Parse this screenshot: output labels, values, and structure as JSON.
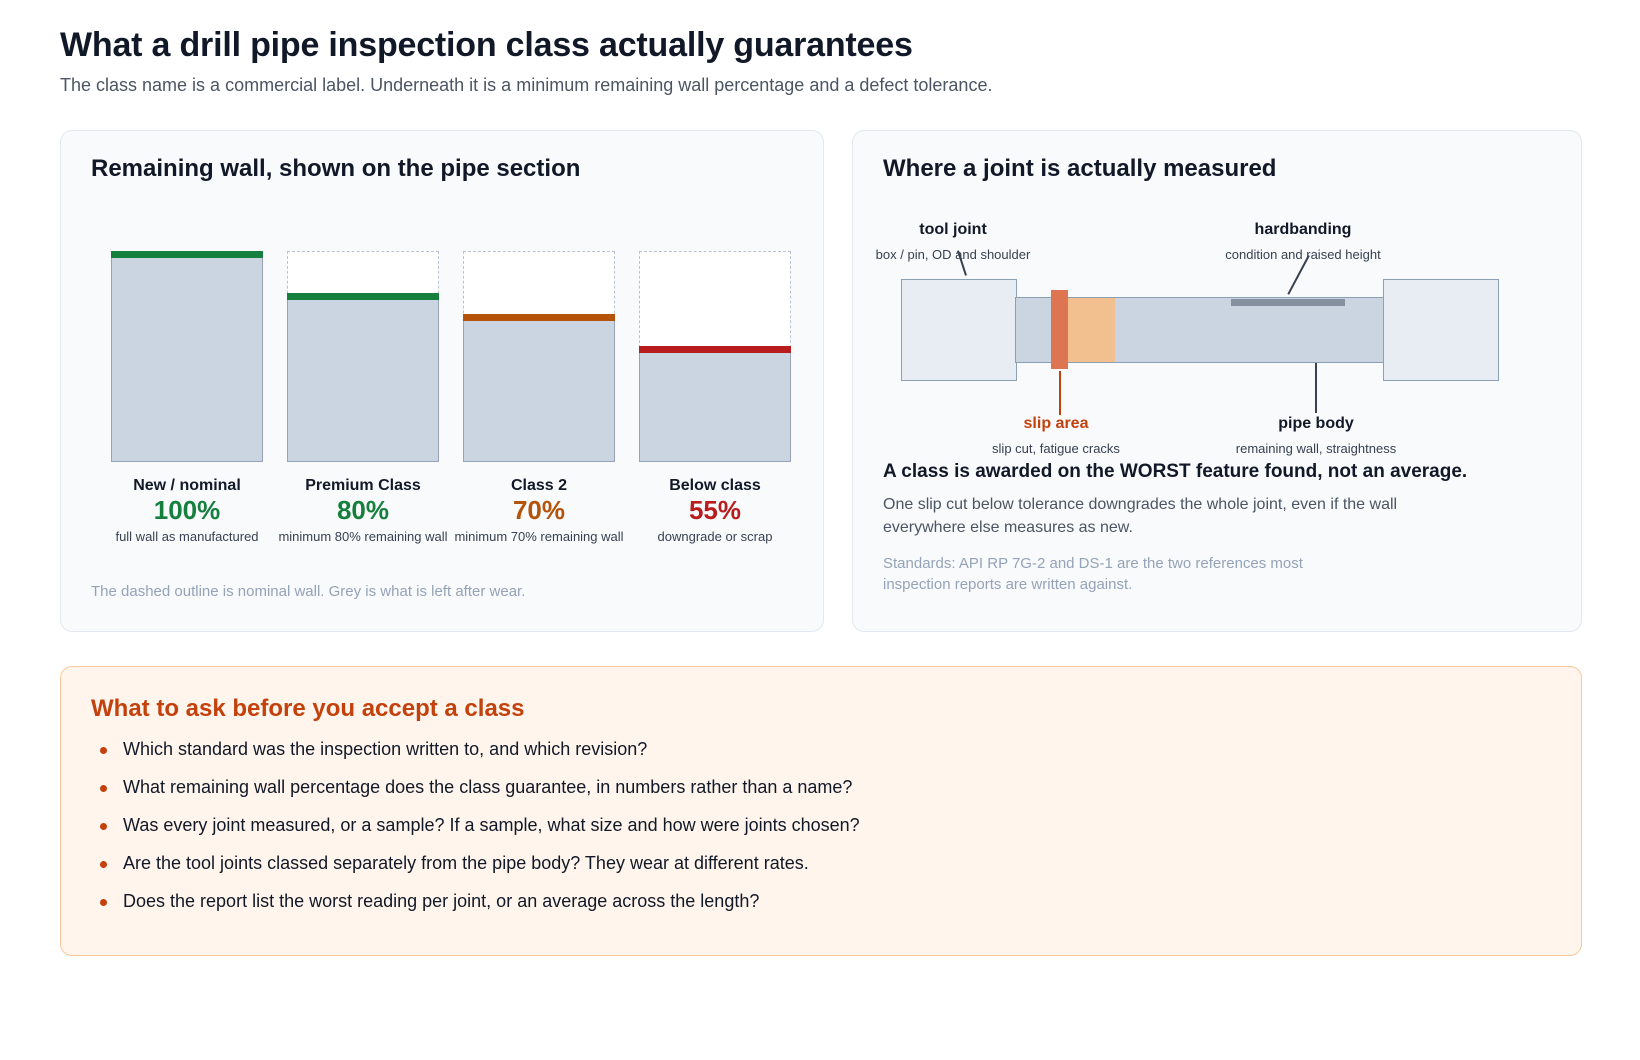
{
  "header": {
    "title": "What a drill pipe inspection class actually guarantees",
    "subtitle": "The class name is a commercial label. Underneath it is a minimum remaining wall percentage and a defect tolerance."
  },
  "wall_panel": {
    "title": "Remaining wall, shown on the pipe section",
    "footnote": "The dashed outline is nominal wall. Grey is what is left after wear.",
    "classes": [
      {
        "name": "New / nominal",
        "percent_label": "100%",
        "remaining_wall_pct": 100,
        "description": "full wall as manufactured",
        "color": "#15803d"
      },
      {
        "name": "Premium Class",
        "percent_label": "80%",
        "remaining_wall_pct": 80,
        "description": "minimum 80% remaining wall",
        "color": "#15803d"
      },
      {
        "name": "Class 2",
        "percent_label": "70%",
        "remaining_wall_pct": 70,
        "description": "minimum 70% remaining wall",
        "color": "#b45309"
      },
      {
        "name": "Below class",
        "percent_label": "55%",
        "remaining_wall_pct": 55,
        "description": "downgrade or scrap",
        "color": "#b91c1c"
      }
    ]
  },
  "joint_panel": {
    "title": "Where a joint is actually measured",
    "labels": {
      "tool_joint": {
        "title": "tool joint",
        "sub": "box / pin, OD and shoulder"
      },
      "hardbanding": {
        "title": "hardbanding",
        "sub": "condition and raised height"
      },
      "slip_area": {
        "title": "slip area",
        "sub": "slip cut, fatigue cracks"
      },
      "pipe_body": {
        "title": "pipe body",
        "sub": "remaining wall, straightness"
      }
    },
    "worst_heading": "A class is awarded on the WORST feature found, not an average.",
    "worst_body": "One slip cut below tolerance downgrades the whole joint, even if the wall everywhere else measures as new.",
    "standards": "Standards: API RP 7G-2 and DS-1 are the two references most inspection reports are written against."
  },
  "ask_panel": {
    "title": "What to ask before you accept a class",
    "items": [
      "Which standard was the inspection written to, and which revision?",
      "What remaining wall percentage does the class guarantee, in numbers rather than a name?",
      "Was every joint measured, or a sample? If a sample, what size and how were joints chosen?",
      "Are the tool joints classed separately from the pipe body? They wear at different rates.",
      "Does the report list the worst reading per joint, or an average across the length?"
    ]
  }
}
